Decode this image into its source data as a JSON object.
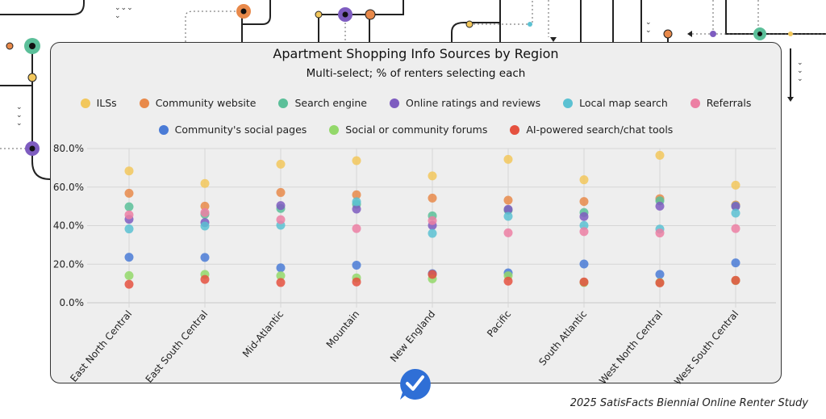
{
  "chart_data": {
    "type": "scatter",
    "title": "Apartment Shopping Info Sources by Region",
    "subtitle": "Multi-select; % of renters selecting each",
    "categories": [
      "East North Central",
      "East South Central",
      "Mid-Atlantic",
      "Mountain",
      "New England",
      "Pacific",
      "South Atlantic",
      "West North Central",
      "West South Central"
    ],
    "ylim": [
      0,
      80
    ],
    "yticks": [
      "0.0%",
      "20.0%",
      "40.0%",
      "60.0%",
      "80.0%"
    ],
    "ytick_values": [
      0,
      20,
      40,
      60,
      80
    ],
    "grid": true,
    "legend_placement": "top",
    "series": [
      {
        "name": "ILSs",
        "color": "#f2c75c",
        "values": [
          68.4,
          61.9,
          71.9,
          73.7,
          65.8,
          74.4,
          63.8,
          76.5,
          61.0
        ]
      },
      {
        "name": "Community website",
        "color": "#e8894a",
        "values": [
          56.8,
          50.1,
          57.2,
          56.0,
          54.3,
          53.2,
          52.5,
          54.0,
          50.7
        ]
      },
      {
        "name": "Search engine",
        "color": "#5bbf99",
        "values": [
          49.8,
          45.9,
          48.9,
          51.1,
          45.1,
          48.0,
          46.8,
          52.9,
          50.2
        ]
      },
      {
        "name": "Online ratings and reviews",
        "color": "#7e5cc0",
        "values": [
          43.3,
          41.6,
          50.4,
          48.6,
          40.1,
          48.5,
          44.7,
          50.1,
          50.0
        ]
      },
      {
        "name": "Local map search",
        "color": "#5bc1d2",
        "values": [
          38.3,
          39.8,
          40.2,
          52.4,
          36.0,
          44.8,
          40.1,
          38.2,
          46.5
        ]
      },
      {
        "name": "Referrals",
        "color": "#ec7fa3",
        "values": [
          45.6,
          46.8,
          43.1,
          38.5,
          42.6,
          36.3,
          36.9,
          36.2,
          38.5
        ]
      },
      {
        "name": "Community's social pages",
        "color": "#4a7bd6",
        "values": [
          23.6,
          23.5,
          18.1,
          19.5,
          15.1,
          15.5,
          20.1,
          14.7,
          20.7
        ]
      },
      {
        "name": "Social or community forums",
        "color": "#93d86a",
        "values": [
          14.1,
          14.7,
          14.0,
          12.9,
          12.4,
          14.0,
          10.5,
          10.5,
          11.5
        ]
      },
      {
        "name": "AI-powered search/chat tools",
        "color": "#e5513f",
        "values": [
          9.6,
          12.1,
          10.5,
          10.8,
          14.7,
          11.2,
          10.8,
          10.3,
          11.6
        ]
      }
    ]
  },
  "footer": "2025 SatisFacts Biennial Online Renter Study",
  "badge_icon": "checkmark-speech-bubble-icon"
}
